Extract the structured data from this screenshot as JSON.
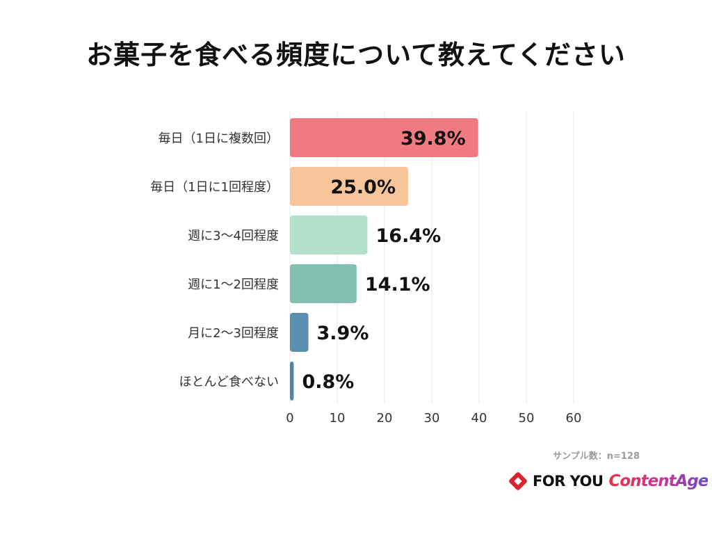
{
  "chart_data": {
    "type": "bar",
    "orientation": "horizontal",
    "title": "お菓子を食べる頻度について教えてください",
    "categories": [
      "毎日（1日に複数回）",
      "毎日（1日に1回程度）",
      "週に3〜4回程度",
      "週に1〜2回程度",
      "月に2〜3回程度",
      "ほとんど食べない"
    ],
    "values": [
      39.8,
      25.0,
      16.4,
      14.1,
      3.9,
      0.8
    ],
    "value_labels": [
      "39.8%",
      "25.0%",
      "16.4%",
      "14.1%",
      "3.9%",
      "0.8%"
    ],
    "colors": [
      "#f07a82",
      "#f8c49a",
      "#b3dfcd",
      "#82bfb0",
      "#5b8fb0",
      "#4f85a8"
    ],
    "xticks": [
      "0",
      "10",
      "20",
      "30",
      "40",
      "50",
      "60"
    ],
    "xlim": [
      0,
      60
    ],
    "grid": true,
    "xlabel": "",
    "ylabel": ""
  },
  "sample_note": "サンプル数：n=128",
  "branding": {
    "logo1": "FOR YOU",
    "logo2": "ContentAge"
  }
}
